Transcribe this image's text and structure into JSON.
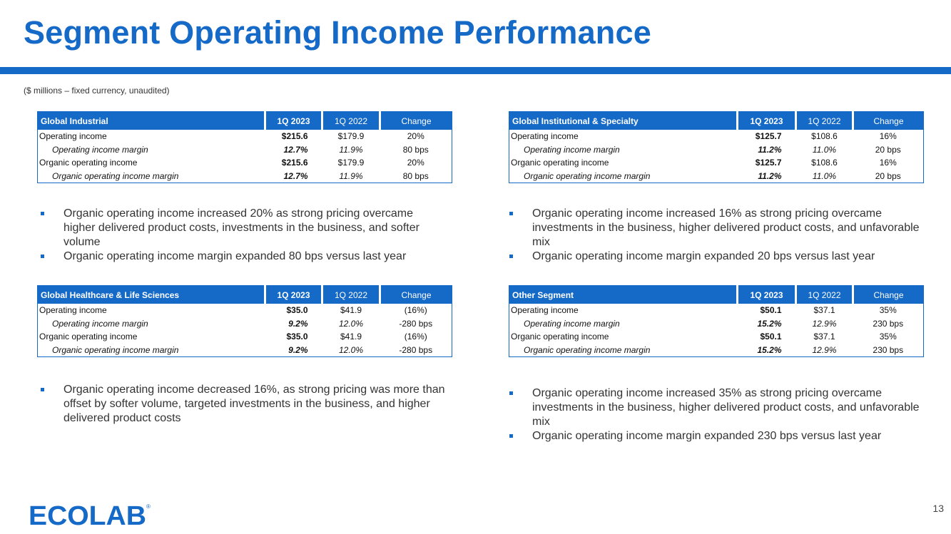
{
  "title": "Segment Operating Income Performance",
  "subtitle": "($ millions – fixed currency, unaudited)",
  "colors": {
    "brand_blue": "#1569c7"
  },
  "tables": {
    "gi": {
      "name": "Global Industrial",
      "col_cur": "1Q 2023",
      "col_prev": "1Q 2022",
      "col_chg": "Change",
      "rows": [
        {
          "label": "Operating income",
          "cur": "$215.6",
          "prev": "$179.9",
          "chg": "20%"
        },
        {
          "label": "Operating income margin",
          "cur": "12.7%",
          "prev": "11.9%",
          "chg": "80 bps"
        },
        {
          "label": "Organic operating income",
          "cur": "$215.6",
          "prev": "$179.9",
          "chg": "20%"
        },
        {
          "label": "Organic operating income margin",
          "cur": "12.7%",
          "prev": "11.9%",
          "chg": "80 bps"
        }
      ]
    },
    "gis": {
      "name": "Global Institutional & Specialty",
      "col_cur": "1Q 2023",
      "col_prev": "1Q 2022",
      "col_chg": "Change",
      "rows": [
        {
          "label": "Operating income",
          "cur": "$125.7",
          "prev": "$108.6",
          "chg": "16%"
        },
        {
          "label": "Operating income margin",
          "cur": "11.2%",
          "prev": "11.0%",
          "chg": "20 bps"
        },
        {
          "label": "Organic operating income",
          "cur": "$125.7",
          "prev": "$108.6",
          "chg": "16%"
        },
        {
          "label": "Organic operating income margin",
          "cur": "11.2%",
          "prev": "11.0%",
          "chg": "20 bps"
        }
      ]
    },
    "ghls": {
      "name": "Global Healthcare & Life Sciences",
      "col_cur": "1Q 2023",
      "col_prev": "1Q 2022",
      "col_chg": "Change",
      "rows": [
        {
          "label": "Operating income",
          "cur": "$35.0",
          "prev": "$41.9",
          "chg": "(16%)"
        },
        {
          "label": "Operating income margin",
          "cur": "9.2%",
          "prev": "12.0%",
          "chg": "-280 bps"
        },
        {
          "label": "Organic operating income",
          "cur": "$35.0",
          "prev": "$41.9",
          "chg": "(16%)"
        },
        {
          "label": "Organic operating income margin",
          "cur": "9.2%",
          "prev": "12.0%",
          "chg": "-280 bps"
        }
      ]
    },
    "other": {
      "name": "Other Segment",
      "col_cur": "1Q 2023",
      "col_prev": "1Q 2022",
      "col_chg": "Change",
      "rows": [
        {
          "label": "Operating income",
          "cur": "$50.1",
          "prev": "$37.1",
          "chg": "35%"
        },
        {
          "label": "Operating income margin",
          "cur": "15.2%",
          "prev": "12.9%",
          "chg": "230 bps"
        },
        {
          "label": "Organic operating income",
          "cur": "$50.1",
          "prev": "$37.1",
          "chg": "35%"
        },
        {
          "label": "Organic operating income margin",
          "cur": "15.2%",
          "prev": "12.9%",
          "chg": "230 bps"
        }
      ]
    }
  },
  "bullets": {
    "gi": [
      "Organic operating income increased 20% as strong pricing overcame higher delivered product costs, investments in the business, and softer volume",
      "Organic operating income margin expanded 80 bps versus last year"
    ],
    "gis": [
      "Organic operating income increased 16% as strong pricing overcame investments in the business, higher delivered product costs, and unfavorable mix",
      "Organic operating income margin expanded 20 bps versus last year"
    ],
    "ghls": [
      "Organic operating income decreased 16%, as strong pricing was more than offset by softer volume, targeted investments in the business, and higher delivered product costs"
    ],
    "other": [
      "Organic operating income increased 35% as strong pricing overcame investments in the business, higher delivered product costs, and unfavorable mix",
      "Organic operating income margin expanded 230 bps versus last year"
    ]
  },
  "logo_text": "ECOLAB",
  "page_number": "13"
}
